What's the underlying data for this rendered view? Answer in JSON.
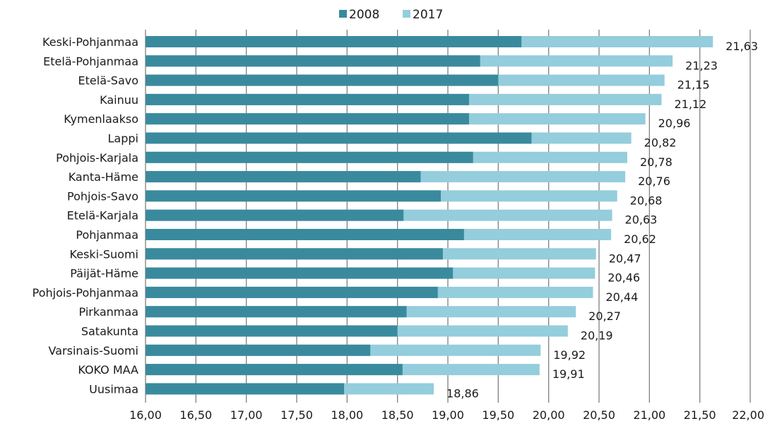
{
  "colors": {
    "series_2008": "#3a8a9e",
    "series_2017": "#94cddc",
    "grid": "#808080",
    "text": "#1a1a1a"
  },
  "chart_data": {
    "type": "bar",
    "orientation": "horizontal",
    "stacked": false,
    "overlay": true,
    "title": "",
    "xlabel": "",
    "ylabel": "",
    "xlim": [
      16.0,
      22.0
    ],
    "grid": true,
    "legend": "top-center",
    "x_ticks": [
      "16,00",
      "16,50",
      "17,00",
      "17,50",
      "18,00",
      "18,50",
      "19,00",
      "19,50",
      "20,00",
      "20,50",
      "21,00",
      "21,50",
      "22,00"
    ],
    "categories": [
      "Keski-Pohjanmaa",
      "Etelä-Pohjanmaa",
      "Etelä-Savo",
      "Kainuu",
      "Kymenlaakso",
      "Lappi",
      "Pohjois-Karjala",
      "Kanta-Häme",
      "Pohjois-Savo",
      "Etelä-Karjala",
      "Pohjanmaa",
      "Keski-Suomi",
      "Päijät-Häme",
      "Pohjois-Pohjanmaa",
      "Pirkanmaa",
      "Satakunta",
      "Varsinais-Suomi",
      "KOKO MAA",
      "Uusimaa"
    ],
    "series": [
      {
        "name": "2008",
        "values": [
          19.73,
          19.32,
          19.5,
          19.21,
          19.21,
          19.83,
          19.25,
          18.73,
          18.93,
          18.56,
          19.16,
          18.95,
          19.05,
          18.9,
          18.59,
          18.5,
          18.23,
          18.55,
          17.97
        ]
      },
      {
        "name": "2017",
        "values": [
          21.63,
          21.23,
          21.15,
          21.12,
          20.96,
          20.82,
          20.78,
          20.76,
          20.68,
          20.63,
          20.62,
          20.47,
          20.46,
          20.44,
          20.27,
          20.19,
          19.92,
          19.91,
          18.86
        ]
      }
    ],
    "data_labels": [
      "21,63",
      "21,23",
      "21,15",
      "21,12",
      "20,96",
      "20,82",
      "20,78",
      "20,76",
      "20,68",
      "20,63",
      "20,62",
      "20,47",
      "20,46",
      "20,44",
      "20,27",
      "20,19",
      "19,92",
      "19,91",
      "18,86"
    ]
  }
}
